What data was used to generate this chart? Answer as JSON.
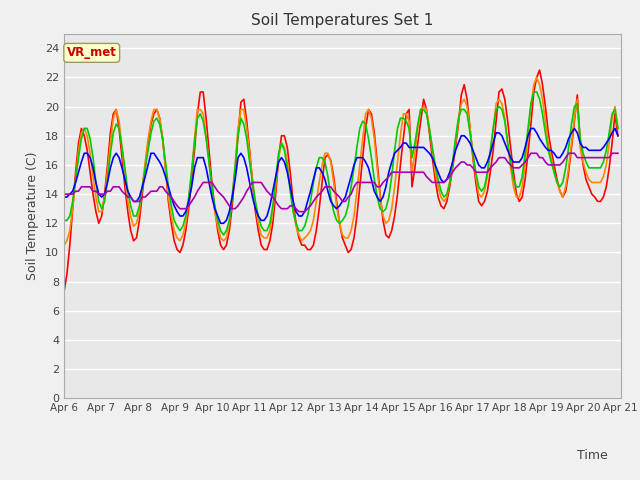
{
  "title": "Soil Temperatures Set 1",
  "xlabel": "Time",
  "ylabel": "Soil Temperature (C)",
  "annotation": "VR_met",
  "ylim": [
    0,
    25
  ],
  "yticks": [
    0,
    2,
    4,
    6,
    8,
    10,
    12,
    14,
    16,
    18,
    20,
    22,
    24
  ],
  "background_color": "#e8e8e8",
  "outer_bg": "#f0f0f0",
  "grid_color": "#ffffff",
  "colors": {
    "Tsoil -2cm": "#ff0000",
    "Tsoil -4cm": "#ff8800",
    "Tsoil -8cm": "#00cc00",
    "Tsoil -16cm": "#0000ff",
    "Tsoil -32cm": "#aa00aa"
  },
  "line_width": 1.2,
  "tsoil_2cm": [
    7.3,
    8.5,
    10.5,
    13.0,
    15.5,
    17.5,
    18.5,
    18.0,
    17.0,
    15.5,
    14.0,
    12.8,
    12.0,
    12.5,
    14.0,
    16.0,
    18.2,
    19.5,
    19.8,
    18.5,
    16.5,
    14.5,
    12.8,
    11.5,
    10.8,
    11.0,
    12.2,
    14.0,
    15.8,
    17.5,
    18.8,
    19.5,
    19.8,
    19.2,
    17.8,
    15.8,
    13.5,
    12.0,
    10.8,
    10.2,
    10.0,
    10.5,
    11.5,
    13.0,
    15.0,
    17.0,
    19.5,
    21.0,
    21.0,
    19.2,
    17.0,
    14.8,
    13.0,
    11.5,
    10.5,
    10.2,
    10.5,
    11.5,
    13.2,
    15.5,
    18.0,
    20.3,
    20.5,
    19.0,
    17.0,
    14.8,
    12.8,
    11.5,
    10.5,
    10.2,
    10.2,
    10.8,
    12.0,
    14.0,
    16.5,
    18.0,
    18.0,
    17.2,
    15.5,
    13.5,
    12.0,
    11.0,
    10.5,
    10.5,
    10.2,
    10.2,
    10.5,
    11.5,
    13.0,
    14.8,
    16.5,
    16.7,
    16.3,
    15.2,
    13.5,
    12.0,
    11.0,
    10.5,
    10.0,
    10.2,
    11.0,
    12.5,
    14.5,
    16.5,
    18.5,
    19.8,
    19.5,
    18.2,
    16.2,
    14.0,
    12.2,
    11.2,
    11.0,
    11.5,
    12.5,
    14.0,
    16.0,
    17.8,
    19.5,
    19.8,
    14.5,
    15.8,
    17.5,
    19.0,
    20.5,
    19.8,
    18.2,
    16.5,
    15.0,
    13.8,
    13.2,
    13.0,
    13.5,
    14.5,
    15.8,
    17.2,
    18.8,
    20.8,
    21.5,
    20.5,
    18.5,
    16.5,
    14.8,
    13.5,
    13.2,
    13.5,
    14.2,
    15.5,
    17.0,
    19.0,
    21.0,
    21.2,
    20.5,
    19.0,
    17.2,
    15.5,
    14.0,
    13.5,
    13.8,
    15.0,
    16.8,
    18.8,
    21.0,
    22.0,
    22.5,
    21.5,
    20.0,
    18.2,
    17.0,
    16.0,
    15.0,
    14.2,
    13.8,
    14.2,
    15.5,
    17.2,
    19.0,
    20.8,
    17.5,
    16.0,
    15.0,
    14.5,
    14.0,
    13.8,
    13.5,
    13.5,
    13.8,
    14.5,
    15.8,
    17.5,
    19.5,
    18.0
  ],
  "tsoil_4cm": [
    10.5,
    10.8,
    11.5,
    13.0,
    15.0,
    17.0,
    18.2,
    18.5,
    18.0,
    16.8,
    15.2,
    13.8,
    12.8,
    12.8,
    13.8,
    15.5,
    17.5,
    19.2,
    19.8,
    19.0,
    17.2,
    15.2,
    13.5,
    12.5,
    11.8,
    12.0,
    12.8,
    14.5,
    16.2,
    17.8,
    19.0,
    19.8,
    19.8,
    19.2,
    17.8,
    15.8,
    13.8,
    12.5,
    11.5,
    11.0,
    10.8,
    11.2,
    12.0,
    13.5,
    15.5,
    17.8,
    19.8,
    19.8,
    19.5,
    18.0,
    16.2,
    14.2,
    12.8,
    11.8,
    11.0,
    10.8,
    11.0,
    12.0,
    13.8,
    16.0,
    18.5,
    19.8,
    19.8,
    18.5,
    16.8,
    15.0,
    13.2,
    12.0,
    11.2,
    11.0,
    11.0,
    11.5,
    12.8,
    14.5,
    16.5,
    17.5,
    17.2,
    16.2,
    14.5,
    13.0,
    11.8,
    11.2,
    10.8,
    11.0,
    11.2,
    11.5,
    12.2,
    13.5,
    14.8,
    16.0,
    16.8,
    16.8,
    16.2,
    14.8,
    13.2,
    12.0,
    11.2,
    11.0,
    11.0,
    11.5,
    12.5,
    14.2,
    16.0,
    17.8,
    19.5,
    19.8,
    19.2,
    17.8,
    15.8,
    13.8,
    12.5,
    12.0,
    12.2,
    13.0,
    14.5,
    16.2,
    18.0,
    19.5,
    19.5,
    19.0,
    15.5,
    16.8,
    18.5,
    19.8,
    20.0,
    19.8,
    18.5,
    17.0,
    15.5,
    14.5,
    13.8,
    13.5,
    13.8,
    14.8,
    16.0,
    17.5,
    19.0,
    20.2,
    20.5,
    20.0,
    18.5,
    16.8,
    15.2,
    14.0,
    13.8,
    14.2,
    15.2,
    16.8,
    18.5,
    20.2,
    20.5,
    20.2,
    19.2,
    17.5,
    15.8,
    14.5,
    13.8,
    13.8,
    14.5,
    16.0,
    18.0,
    20.0,
    21.5,
    22.0,
    21.5,
    20.5,
    19.0,
    17.5,
    16.5,
    15.5,
    14.8,
    14.2,
    13.8,
    14.5,
    15.8,
    17.5,
    19.2,
    20.5,
    17.2,
    16.2,
    15.5,
    15.0,
    14.8,
    14.8,
    14.8,
    14.8,
    15.2,
    16.0,
    17.5,
    19.2,
    20.0,
    18.5
  ],
  "tsoil_8cm": [
    12.2,
    12.2,
    12.5,
    13.5,
    15.0,
    16.5,
    17.8,
    18.5,
    18.5,
    17.8,
    16.5,
    14.8,
    13.5,
    13.0,
    13.5,
    15.0,
    16.8,
    18.2,
    18.8,
    18.5,
    17.2,
    15.8,
    14.2,
    13.2,
    12.5,
    12.5,
    13.2,
    14.5,
    15.8,
    17.0,
    18.2,
    19.0,
    19.2,
    18.8,
    17.8,
    16.2,
    14.5,
    13.2,
    12.2,
    11.8,
    11.5,
    11.8,
    12.5,
    13.8,
    15.5,
    17.5,
    19.2,
    19.5,
    19.0,
    17.8,
    16.2,
    14.5,
    13.2,
    12.2,
    11.5,
    11.2,
    11.5,
    12.2,
    13.8,
    15.8,
    18.0,
    19.2,
    18.8,
    17.8,
    16.2,
    14.8,
    13.5,
    12.5,
    11.8,
    11.5,
    11.5,
    12.0,
    13.2,
    15.0,
    16.8,
    17.5,
    17.0,
    15.8,
    14.2,
    12.8,
    12.0,
    11.5,
    11.5,
    11.8,
    12.5,
    13.5,
    14.8,
    15.8,
    16.5,
    16.5,
    16.2,
    15.2,
    13.8,
    12.8,
    12.2,
    12.0,
    12.2,
    12.5,
    13.2,
    14.5,
    15.8,
    17.2,
    18.5,
    19.0,
    18.8,
    17.8,
    16.5,
    15.0,
    13.8,
    13.0,
    12.8,
    13.0,
    13.8,
    15.2,
    17.0,
    18.5,
    19.2,
    19.2,
    19.0,
    18.5,
    16.5,
    17.5,
    18.8,
    19.8,
    19.8,
    19.5,
    18.5,
    17.2,
    16.0,
    15.0,
    14.2,
    13.8,
    14.0,
    14.8,
    16.2,
    17.8,
    19.2,
    19.8,
    19.8,
    19.5,
    18.2,
    16.8,
    15.5,
    14.5,
    14.2,
    14.5,
    15.5,
    17.0,
    18.5,
    19.8,
    20.0,
    19.8,
    19.0,
    17.5,
    16.2,
    15.0,
    14.5,
    14.5,
    15.2,
    16.8,
    18.5,
    20.2,
    21.0,
    21.0,
    20.5,
    19.5,
    18.2,
    17.0,
    16.2,
    15.5,
    14.8,
    14.5,
    14.8,
    15.8,
    17.2,
    18.8,
    20.0,
    20.2,
    17.8,
    16.8,
    16.2,
    15.8,
    15.8,
    15.8,
    15.8,
    15.8,
    16.2,
    17.0,
    18.2,
    19.5,
    19.8,
    18.5
  ],
  "tsoil_16cm": [
    13.8,
    13.8,
    14.0,
    14.2,
    14.8,
    15.5,
    16.2,
    16.8,
    16.8,
    16.5,
    15.8,
    14.8,
    14.0,
    13.8,
    14.0,
    14.8,
    15.8,
    16.5,
    16.8,
    16.5,
    15.8,
    15.0,
    14.2,
    13.8,
    13.5,
    13.5,
    13.8,
    14.5,
    15.2,
    16.0,
    16.8,
    16.8,
    16.5,
    16.2,
    15.8,
    15.2,
    14.5,
    13.8,
    13.2,
    12.8,
    12.5,
    12.5,
    12.8,
    13.5,
    14.5,
    15.8,
    16.5,
    16.5,
    16.5,
    15.8,
    14.8,
    13.8,
    13.0,
    12.5,
    12.0,
    12.0,
    12.2,
    12.8,
    13.8,
    15.0,
    16.5,
    16.8,
    16.5,
    15.8,
    14.8,
    13.8,
    13.0,
    12.5,
    12.2,
    12.2,
    12.5,
    13.2,
    14.2,
    15.2,
    16.2,
    16.5,
    16.2,
    15.5,
    14.5,
    13.5,
    12.8,
    12.5,
    12.5,
    12.8,
    13.5,
    14.2,
    15.0,
    15.8,
    15.8,
    15.5,
    15.0,
    14.2,
    13.5,
    13.2,
    13.0,
    13.2,
    13.5,
    13.8,
    14.5,
    15.2,
    16.0,
    16.5,
    16.5,
    16.5,
    16.2,
    15.8,
    15.0,
    14.2,
    13.8,
    13.5,
    13.8,
    14.5,
    15.5,
    16.2,
    16.8,
    17.0,
    17.2,
    17.5,
    17.5,
    17.2,
    17.2,
    17.2,
    17.2,
    17.2,
    17.2,
    17.0,
    16.8,
    16.5,
    16.0,
    15.5,
    15.0,
    14.8,
    15.0,
    15.5,
    16.2,
    17.0,
    17.5,
    18.0,
    18.0,
    17.8,
    17.5,
    17.0,
    16.5,
    16.0,
    15.8,
    15.8,
    16.2,
    16.8,
    17.5,
    18.2,
    18.2,
    18.0,
    17.5,
    17.0,
    16.5,
    16.2,
    16.2,
    16.2,
    16.5,
    17.2,
    18.0,
    18.5,
    18.5,
    18.2,
    17.8,
    17.5,
    17.2,
    17.0,
    17.0,
    16.8,
    16.5,
    16.5,
    16.8,
    17.2,
    17.8,
    18.2,
    18.5,
    18.2,
    17.5,
    17.2,
    17.2,
    17.0,
    17.0,
    17.0,
    17.0,
    17.0,
    17.2,
    17.5,
    17.8,
    18.2,
    18.5,
    18.0
  ],
  "tsoil_32cm": [
    14.0,
    14.0,
    14.0,
    14.0,
    14.2,
    14.2,
    14.5,
    14.5,
    14.5,
    14.5,
    14.2,
    14.2,
    14.0,
    14.0,
    14.0,
    14.2,
    14.2,
    14.5,
    14.5,
    14.5,
    14.2,
    14.0,
    13.8,
    13.8,
    13.5,
    13.5,
    13.5,
    13.8,
    13.8,
    14.0,
    14.2,
    14.2,
    14.2,
    14.5,
    14.5,
    14.2,
    14.0,
    13.8,
    13.5,
    13.2,
    13.0,
    13.0,
    13.0,
    13.2,
    13.5,
    13.8,
    14.2,
    14.5,
    14.8,
    14.8,
    14.8,
    14.8,
    14.5,
    14.2,
    14.0,
    13.8,
    13.5,
    13.2,
    13.0,
    13.0,
    13.2,
    13.5,
    13.8,
    14.2,
    14.5,
    14.8,
    14.8,
    14.8,
    14.8,
    14.5,
    14.2,
    14.0,
    13.8,
    13.5,
    13.2,
    13.0,
    13.0,
    13.0,
    13.2,
    13.2,
    13.0,
    12.8,
    12.8,
    12.8,
    13.0,
    13.2,
    13.5,
    13.8,
    14.0,
    14.2,
    14.5,
    14.5,
    14.5,
    14.2,
    14.0,
    13.8,
    13.5,
    13.5,
    13.8,
    14.0,
    14.5,
    14.8,
    14.8,
    14.8,
    14.8,
    14.8,
    14.8,
    14.8,
    14.5,
    14.5,
    14.8,
    15.0,
    15.2,
    15.5,
    15.5,
    15.5,
    15.5,
    15.5,
    15.5,
    15.5,
    15.5,
    15.5,
    15.5,
    15.5,
    15.5,
    15.2,
    15.0,
    14.8,
    14.8,
    14.8,
    14.8,
    14.8,
    15.0,
    15.2,
    15.5,
    15.8,
    16.0,
    16.2,
    16.2,
    16.0,
    16.0,
    15.8,
    15.5,
    15.5,
    15.5,
    15.5,
    15.5,
    15.8,
    16.0,
    16.2,
    16.5,
    16.5,
    16.5,
    16.2,
    16.0,
    15.8,
    15.8,
    15.8,
    16.0,
    16.2,
    16.5,
    16.8,
    16.8,
    16.8,
    16.5,
    16.5,
    16.2,
    16.0,
    16.0,
    16.0,
    16.0,
    16.0,
    16.2,
    16.5,
    16.8,
    16.8,
    16.8,
    16.5,
    16.5,
    16.5,
    16.5,
    16.5,
    16.5,
    16.5,
    16.5,
    16.5,
    16.5,
    16.5,
    16.5,
    16.8,
    16.8,
    16.8
  ]
}
